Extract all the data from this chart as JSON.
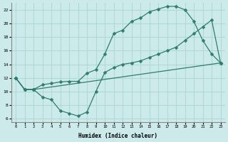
{
  "xlabel": "Humidex (Indice chaleur)",
  "bg_color": "#cceaea",
  "grid_color": "#b0d8d8",
  "line_color": "#2e7d6e",
  "xlim": [
    -0.5,
    23.5
  ],
  "ylim": [
    6,
    23
  ],
  "xticks": [
    0,
    1,
    2,
    3,
    4,
    5,
    6,
    7,
    8,
    9,
    10,
    11,
    12,
    13,
    14,
    15,
    16,
    17,
    18,
    19,
    20,
    21,
    22,
    23
  ],
  "yticks": [
    6,
    8,
    10,
    12,
    14,
    16,
    18,
    20,
    22
  ],
  "line1_x": [
    0,
    1,
    2,
    3,
    4,
    5,
    6,
    7,
    8,
    9,
    10,
    11,
    12,
    13,
    14,
    15,
    16,
    17,
    18,
    19,
    20,
    21,
    22,
    23
  ],
  "line1_y": [
    12.0,
    10.3,
    10.3,
    9.2,
    8.8,
    7.2,
    6.8,
    6.4,
    7.0,
    10.0,
    12.8,
    13.5,
    14.0,
    14.2,
    14.5,
    15.0,
    15.5,
    16.0,
    16.5,
    17.5,
    18.5,
    19.5,
    20.5,
    14.2
  ],
  "line2_x": [
    0,
    1,
    2,
    3,
    4,
    5,
    6,
    7,
    8,
    9,
    10,
    11,
    12,
    13,
    14,
    15,
    16,
    17,
    18,
    19,
    20,
    21,
    22,
    23
  ],
  "line2_y": [
    12.0,
    10.3,
    10.3,
    11.0,
    11.2,
    11.4,
    11.5,
    11.5,
    12.7,
    13.2,
    15.5,
    18.5,
    19.0,
    20.3,
    20.8,
    21.7,
    22.1,
    22.5,
    22.5,
    22.0,
    20.3,
    17.5,
    15.5,
    14.2
  ],
  "line3_x": [
    0,
    1,
    2,
    23
  ],
  "line3_y": [
    12.0,
    10.3,
    10.3,
    14.2
  ]
}
